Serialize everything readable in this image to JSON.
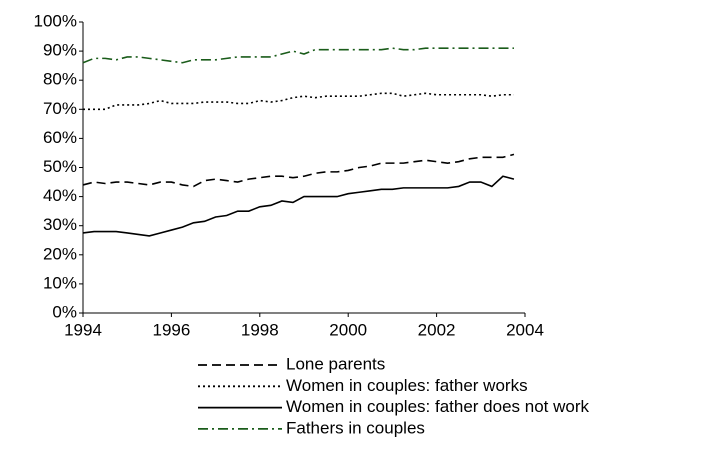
{
  "chart_data": {
    "type": "line",
    "x": [
      1994,
      1994.25,
      1994.5,
      1994.75,
      1995,
      1995.25,
      1995.5,
      1995.75,
      1996,
      1996.25,
      1996.5,
      1996.75,
      1997,
      1997.25,
      1997.5,
      1997.75,
      1998,
      1998.25,
      1998.5,
      1998.75,
      1999,
      1999.25,
      1999.5,
      1999.75,
      2000,
      2000.25,
      2000.5,
      2000.75,
      2001,
      2001.25,
      2001.5,
      2001.75,
      2002,
      2002.25,
      2002.5,
      2002.75,
      2003,
      2003.25,
      2003.5,
      2003.75
    ],
    "series": [
      {
        "name": "Lone parents",
        "color": "#000000",
        "dash": "9,5",
        "values": [
          44,
          45,
          44.5,
          45,
          45,
          44.5,
          44,
          45,
          45,
          44,
          43.5,
          45.5,
          46,
          45.5,
          45,
          46,
          46.5,
          47,
          47,
          46.5,
          47,
          48,
          48.5,
          48.5,
          49,
          50,
          50.5,
          51.5,
          51.5,
          51.5,
          52,
          52.5,
          52,
          51.5,
          52,
          53,
          53.5,
          53.5,
          53.5,
          54.5
        ]
      },
      {
        "name": "Women in couples: father works",
        "color": "#000000",
        "dash": "2,3",
        "values": [
          70,
          70,
          70,
          71.5,
          71.5,
          71.5,
          72,
          73,
          72,
          72,
          72,
          72.5,
          72.5,
          72.5,
          72,
          72,
          73,
          72.5,
          73,
          74,
          74.5,
          74,
          74.5,
          74.5,
          74.5,
          74.5,
          75,
          75.5,
          75.5,
          74.5,
          75,
          75.5,
          75,
          75,
          75,
          75,
          75,
          74.5,
          75,
          75
        ]
      },
      {
        "name": "Women in couples: father does not work",
        "color": "#000000",
        "dash": "none",
        "values": [
          27.5,
          28,
          28,
          28,
          27.5,
          27,
          26.5,
          27.5,
          28.5,
          29.5,
          31,
          31.5,
          33,
          33.5,
          35,
          35,
          36.5,
          37,
          38.5,
          38,
          40,
          40,
          40,
          40,
          41,
          41.5,
          42,
          42.5,
          42.5,
          43,
          43,
          43,
          43,
          43,
          43.5,
          45,
          45,
          43.5,
          47,
          46
        ]
      },
      {
        "name": "Fathers in couples",
        "color": "#1a5c1a",
        "dash": "10,4,2,4",
        "values": [
          86,
          87.5,
          87.5,
          87,
          88,
          88,
          87.5,
          87,
          86.5,
          86,
          87,
          87,
          87,
          87.5,
          88,
          88,
          88,
          88,
          89,
          90,
          89,
          90.5,
          90.5,
          90.5,
          90.5,
          90.5,
          90.5,
          90.5,
          91,
          90.5,
          90.5,
          91,
          91,
          91,
          91,
          91,
          91,
          91,
          91,
          91
        ]
      }
    ],
    "xlim": [
      1994,
      2004
    ],
    "xticks": [
      1994,
      1996,
      1998,
      2000,
      2002,
      2004
    ],
    "ylim": [
      0,
      100
    ],
    "yticks": [
      {
        "value": 0,
        "label": "0%"
      },
      {
        "value": 10,
        "label": "10%"
      },
      {
        "value": 20,
        "label": "20%"
      },
      {
        "value": 30,
        "label": "30%"
      },
      {
        "value": 40,
        "label": "40%"
      },
      {
        "value": 50,
        "label": "50%"
      },
      {
        "value": 60,
        "label": "60%"
      },
      {
        "value": 70,
        "label": "70%"
      },
      {
        "value": 80,
        "label": "80%"
      },
      {
        "value": 90,
        "label": "90%"
      },
      {
        "value": 100,
        "label": "100%"
      }
    ],
    "grid": false,
    "legend": "bottom"
  }
}
